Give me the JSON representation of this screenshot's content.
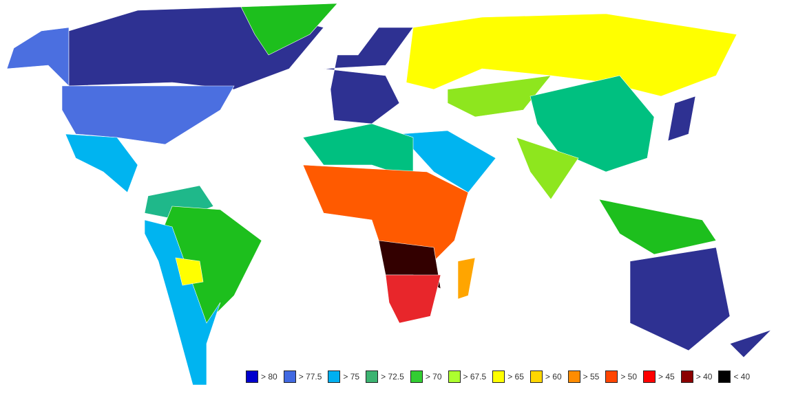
{
  "legend": {
    "items": [
      {
        "label": "> 80",
        "color": "#0000cd"
      },
      {
        "label": "> 77.5",
        "color": "#4169e1"
      },
      {
        "label": "> 75",
        "color": "#00b0f0"
      },
      {
        "label": "> 72.5",
        "color": "#3cb371"
      },
      {
        "label": "> 70",
        "color": "#32cd32"
      },
      {
        "label": "> 67.5",
        "color": "#adff2f"
      },
      {
        "label": "> 65",
        "color": "#ffff00"
      },
      {
        "label": "> 60",
        "color": "#ffd700"
      },
      {
        "label": "> 55",
        "color": "#ff8c00"
      },
      {
        "label": "> 50",
        "color": "#ff4500"
      },
      {
        "label": "> 45",
        "color": "#ff0000"
      },
      {
        "label": "> 40",
        "color": "#8b0000"
      },
      {
        "label": "< 40",
        "color": "#000000"
      }
    ]
  }
}
